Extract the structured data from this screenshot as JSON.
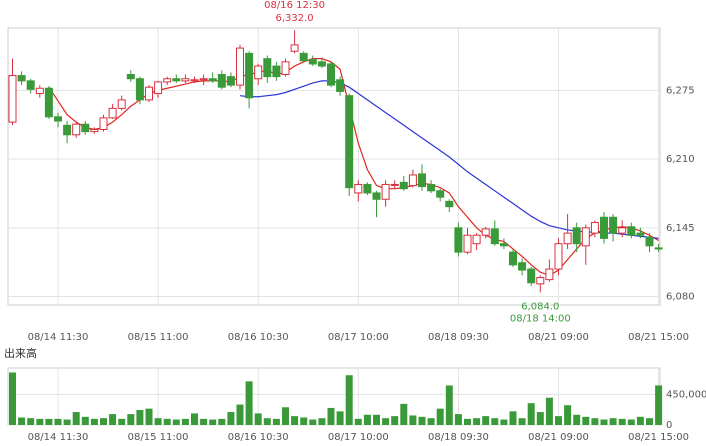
{
  "chart_data": [
    {
      "type": "candlestick",
      "categories": [
        null,
        null,
        null,
        null,
        null,
        "08/14 11:30",
        null,
        null,
        null,
        null,
        null,
        null,
        null,
        null,
        null,
        null,
        "08/15 11:00",
        null,
        null,
        null,
        null,
        null,
        null,
        null,
        null,
        null,
        null,
        "08/16 10:30",
        null,
        null,
        null,
        null,
        null,
        null,
        null,
        null,
        null,
        null,
        "08/17 10:00",
        null,
        null,
        null,
        null,
        null,
        null,
        null,
        null,
        null,
        null,
        "08/18 09:30",
        null,
        null,
        null,
        null,
        null,
        null,
        null,
        null,
        null,
        null,
        "08/21 09:00",
        null,
        null,
        null,
        null,
        null,
        null,
        null,
        null,
        null,
        null,
        "08/21 15:00"
      ],
      "open": [
        6245,
        6289,
        6284,
        6272,
        6277,
        6250,
        6242,
        6233,
        6243,
        6236,
        6238,
        6249,
        6258,
        6290,
        6286,
        6266,
        6272,
        6283,
        6286,
        6284,
        6284,
        6285,
        6286,
        6290,
        6288,
        6280,
        6310,
        6286,
        6305,
        6298,
        6290,
        6312,
        6310,
        6304,
        6302,
        6300,
        6285,
        6270,
        6178,
        6186,
        6178,
        6172,
        6186,
        6188,
        6185,
        6196,
        6186,
        6180,
        6170,
        6145,
        6122,
        6130,
        6138,
        6144,
        6130,
        6122,
        6112,
        6106,
        6092,
        6096,
        6106,
        6130,
        6145,
        6128,
        6140,
        6155,
        6155,
        6140,
        6146,
        6140,
        6136,
        6126
      ],
      "high": [
        6305,
        6293,
        6286,
        6280,
        6279,
        6254,
        6246,
        6245,
        6246,
        6240,
        6252,
        6262,
        6270,
        6294,
        6288,
        6280,
        6284,
        6288,
        6290,
        6290,
        6288,
        6290,
        6292,
        6294,
        6292,
        6318,
        6312,
        6300,
        6308,
        6302,
        6305,
        6332,
        6312,
        6308,
        6306,
        6302,
        6288,
        6272,
        6190,
        6188,
        6180,
        6190,
        6190,
        6194,
        6200,
        6205,
        6190,
        6182,
        6172,
        6150,
        6145,
        6140,
        6146,
        6152,
        6135,
        6125,
        6116,
        6108,
        6100,
        6115,
        6135,
        6158,
        6150,
        6148,
        6152,
        6160,
        6158,
        6152,
        6150,
        6145,
        6140,
        6130
      ],
      "low": [
        6242,
        6280,
        6272,
        6268,
        6248,
        6240,
        6225,
        6230,
        6233,
        6234,
        6236,
        6248,
        6256,
        6283,
        6262,
        6264,
        6268,
        6280,
        6282,
        6282,
        6282,
        6280,
        6282,
        6276,
        6278,
        6276,
        6258,
        6280,
        6282,
        6284,
        6288,
        6310,
        6302,
        6298,
        6296,
        6278,
        6270,
        6175,
        6170,
        6176,
        6155,
        6165,
        6182,
        6180,
        6183,
        6180,
        6178,
        6170,
        6160,
        6118,
        6120,
        6124,
        6135,
        6128,
        6125,
        6108,
        6100,
        6090,
        6084,
        6094,
        6100,
        6125,
        6122,
        6110,
        6136,
        6130,
        6132,
        6136,
        6135,
        6135,
        6122,
        6122
      ],
      "close": [
        6289,
        6284,
        6276,
        6277,
        6250,
        6246,
        6233,
        6243,
        6236,
        6238,
        6249,
        6258,
        6266,
        6286,
        6266,
        6278,
        6283,
        6286,
        6284,
        6286,
        6285,
        6286,
        6284,
        6278,
        6280,
        6315,
        6268,
        6298,
        6288,
        6288,
        6302,
        6318,
        6303,
        6300,
        6298,
        6280,
        6274,
        6183,
        6186,
        6178,
        6172,
        6186,
        6186,
        6182,
        6195,
        6184,
        6180,
        6174,
        6165,
        6122,
        6138,
        6138,
        6144,
        6130,
        6128,
        6110,
        6105,
        6093,
        6098,
        6106,
        6130,
        6140,
        6130,
        6145,
        6150,
        6135,
        6140,
        6145,
        6138,
        6138,
        6128,
        6125
      ],
      "up_color": "#d9303f",
      "down_color": "#3a9a3a",
      "lines": [
        {
          "color": "#e0241f",
          "values": [
            null,
            null,
            null,
            null,
            6278,
            6265,
            6252,
            6245,
            6240,
            6238,
            6240,
            6245,
            6252,
            6260,
            6266,
            6272,
            6275,
            6277,
            6279,
            6281,
            6283,
            6284,
            6284,
            6284,
            6283,
            6288,
            6290,
            6292,
            6294,
            6290,
            6292,
            6298,
            6302,
            6305,
            6305,
            6302,
            6295,
            6260,
            6225,
            6200,
            6185,
            6182,
            6182,
            6183,
            6185,
            6187,
            6186,
            6183,
            6178,
            6165,
            6155,
            6145,
            6138,
            6134,
            6132,
            6125,
            6118,
            6110,
            6103,
            6100,
            6105,
            6115,
            6125,
            6135,
            6140,
            6143,
            6145,
            6146,
            6145,
            6142,
            6138,
            6133
          ]
        },
        {
          "color": "#2b35d8",
          "values": [
            null,
            null,
            null,
            null,
            null,
            null,
            null,
            null,
            null,
            null,
            null,
            null,
            null,
            null,
            null,
            null,
            null,
            null,
            null,
            null,
            null,
            null,
            null,
            null,
            null,
            6270,
            6269,
            6269,
            6270,
            6271,
            6273,
            6276,
            6279,
            6282,
            6284,
            6284,
            6282,
            6278,
            6272,
            6266,
            6260,
            6254,
            6248,
            6242,
            6236,
            6230,
            6224,
            6218,
            6212,
            6205,
            6198,
            6192,
            6186,
            6180,
            6174,
            6168,
            6162,
            6156,
            6151,
            6147,
            6145,
            6143,
            6142,
            6141,
            6141,
            6140,
            6140,
            6139,
            6138,
            6137,
            6136,
            6135
          ]
        }
      ],
      "annotations": [
        {
          "date": "08/16 12:30",
          "value": 6332,
          "label": "6,332.0",
          "kind": "high"
        },
        {
          "date": "08/18 14:00",
          "value": 6084,
          "label": "6,084.0",
          "kind": "low"
        }
      ],
      "ylim": [
        6072,
        6334
      ],
      "yticks": [
        {
          "value": 6080,
          "label": "6,080"
        },
        {
          "value": 6145,
          "label": "6,145"
        },
        {
          "value": 6210,
          "label": "6,210"
        },
        {
          "value": 6275,
          "label": "6,275"
        }
      ],
      "grid": true
    },
    {
      "type": "bar",
      "title": "出来高",
      "categories": [
        null,
        null,
        null,
        null,
        null,
        "08/14 11:30",
        null,
        null,
        null,
        null,
        null,
        null,
        null,
        null,
        null,
        null,
        "08/15 11:00",
        null,
        null,
        null,
        null,
        null,
        null,
        null,
        null,
        null,
        null,
        "08/16 10:30",
        null,
        null,
        null,
        null,
        null,
        null,
        null,
        null,
        null,
        null,
        "08/17 10:00",
        null,
        null,
        null,
        null,
        null,
        null,
        null,
        null,
        null,
        null,
        "08/18 09:30",
        null,
        null,
        null,
        null,
        null,
        null,
        null,
        null,
        null,
        null,
        "08/21 09:00",
        null,
        null,
        null,
        null,
        null,
        null,
        null,
        null,
        null,
        null,
        "08/21 15:00"
      ],
      "values": [
        770000,
        110000,
        100000,
        90000,
        90000,
        90000,
        80000,
        190000,
        120000,
        90000,
        100000,
        160000,
        90000,
        160000,
        220000,
        240000,
        100000,
        90000,
        80000,
        90000,
        170000,
        90000,
        80000,
        90000,
        190000,
        300000,
        640000,
        170000,
        100000,
        90000,
        260000,
        130000,
        110000,
        80000,
        100000,
        250000,
        200000,
        730000,
        90000,
        150000,
        150000,
        100000,
        130000,
        310000,
        140000,
        120000,
        100000,
        240000,
        580000,
        160000,
        90000,
        100000,
        130000,
        100000,
        80000,
        200000,
        100000,
        320000,
        190000,
        400000,
        130000,
        290000,
        150000,
        120000,
        100000,
        80000,
        100000,
        90000,
        80000,
        120000,
        100000,
        580000
      ],
      "color": "#3a9a3a",
      "ylim": [
        0,
        836000
      ],
      "yticks": [
        0,
        {
          "value": 450000,
          "label": "450,000"
        }
      ],
      "grid": true
    }
  ]
}
